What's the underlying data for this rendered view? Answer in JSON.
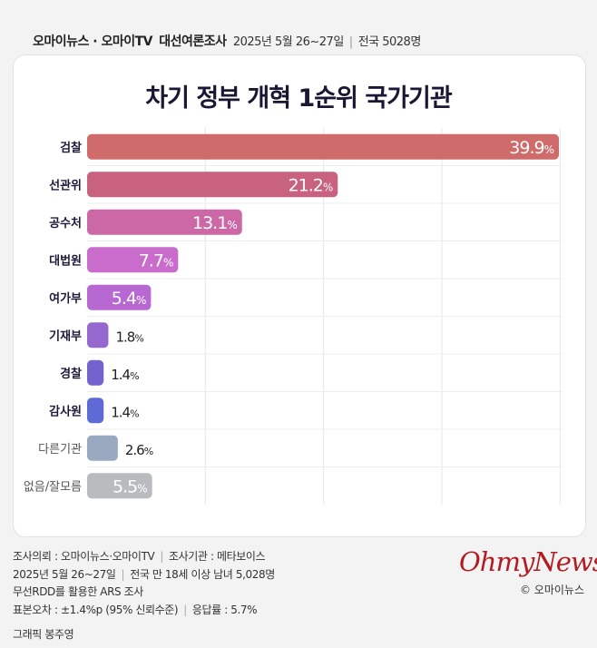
{
  "header": {
    "brand": "오마이뉴스 · 오마이TV",
    "survey": "대선여론조사",
    "dates": "2025년 5월 26~27일",
    "scope": "전국 5028명"
  },
  "chart_data": {
    "type": "bar",
    "orientation": "horizontal",
    "title": "차기 정부 개혁 1순위 국가기관",
    "categories": [
      "검찰",
      "선관위",
      "공수처",
      "대법원",
      "여가부",
      "기재부",
      "경찰",
      "감사원",
      "다른기관",
      "없음/잘모름"
    ],
    "values": [
      39.9,
      21.2,
      13.1,
      7.7,
      5.4,
      1.8,
      1.4,
      1.4,
      2.6,
      5.5
    ],
    "labels": [
      "39.9",
      "21.2",
      "13.1",
      "7.7",
      "5.4",
      "1.8",
      "1.4",
      "1.4",
      "2.6",
      "5.5"
    ],
    "unit": "%",
    "colors": [
      "#cf6b6b",
      "#c9627f",
      "#cc68a6",
      "#c96ccb",
      "#b768d3",
      "#9568d0",
      "#7463cf",
      "#5f6bd4",
      "#9aa8c0",
      "#b9bbbe"
    ],
    "xlim": [
      0,
      40
    ],
    "grid": true
  },
  "footer": {
    "lines": [
      [
        "조사의뢰 : 오마이뉴스·오마이TV",
        "조사기관 : 메타보이스"
      ],
      [
        "2025년 5월 26~27일",
        "전국 만 18세 이상 남녀 5,028명"
      ],
      [
        "무선RDD를 활용한 ARS 조사"
      ],
      [
        "표본오차 : ±1.4%p (95% 신뢰수준)",
        "응답률 : 5.7%"
      ]
    ],
    "credit": "그래픽 봉주영",
    "logo": "OhmyNews",
    "copyright": "© 오마이뉴스"
  }
}
